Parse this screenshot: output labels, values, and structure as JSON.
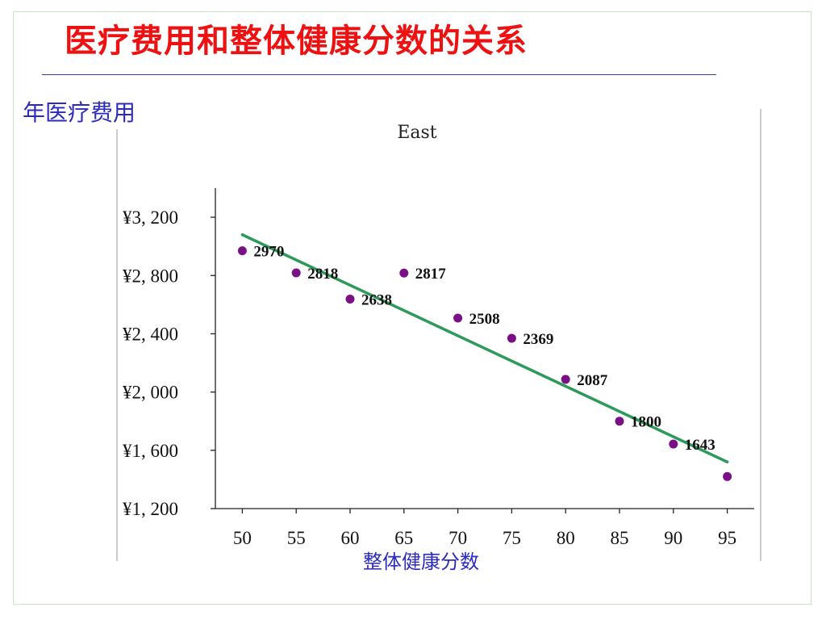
{
  "slide": {
    "title": "医疗费用和整体健康分数的关系",
    "y_axis_caption": "年医疗费用",
    "x_axis_caption": "整体健康分数"
  },
  "chart_data": {
    "type": "scatter",
    "title": "East",
    "xlabel": "整体健康分数",
    "ylabel": "年医疗费用",
    "x_ticks": [
      50,
      55,
      60,
      65,
      70,
      75,
      80,
      85,
      90,
      95
    ],
    "x_tick_labels": [
      "50",
      "55",
      "60",
      "65",
      "70",
      "75",
      "80",
      "85",
      "90",
      "95"
    ],
    "y_ticks": [
      1200,
      1600,
      2000,
      2400,
      2800,
      3200
    ],
    "y_tick_labels": [
      "¥1, 200",
      "¥1, 600",
      "¥2, 000",
      "¥2, 400",
      "¥2, 800",
      "¥3, 200"
    ],
    "xlim": [
      47.5,
      97.5
    ],
    "ylim": [
      1200,
      3400
    ],
    "points": [
      {
        "x": 50,
        "y": 2970,
        "label": "2970"
      },
      {
        "x": 55,
        "y": 2818,
        "label": "2818"
      },
      {
        "x": 60,
        "y": 2638,
        "label": "2638"
      },
      {
        "x": 65,
        "y": 2817,
        "label": "2817"
      },
      {
        "x": 70,
        "y": 2508,
        "label": "2508"
      },
      {
        "x": 75,
        "y": 2369,
        "label": "2369"
      },
      {
        "x": 80,
        "y": 2087,
        "label": "2087"
      },
      {
        "x": 85,
        "y": 1800,
        "label": "1800"
      },
      {
        "x": 90,
        "y": 1643,
        "label": "1643"
      },
      {
        "x": 95,
        "y": 1420,
        "label": ""
      }
    ],
    "trendline": {
      "x_start": 50,
      "y_start": 3080,
      "x_end": 95,
      "y_end": 1520
    },
    "colors": {
      "point": "#7b0f86",
      "trendline": "#2e9a5a",
      "title": "#ee1111",
      "caption": "#2b2bbd"
    },
    "grid": false,
    "legend": "none"
  }
}
